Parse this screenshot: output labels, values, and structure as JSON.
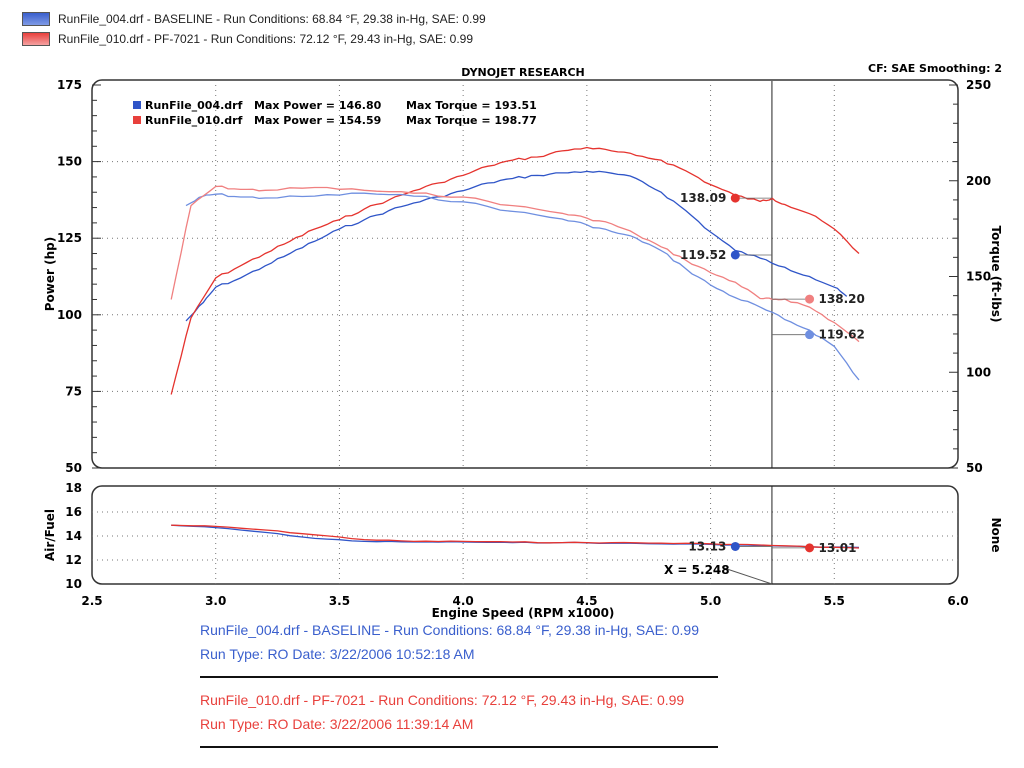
{
  "top_legend": [
    {
      "text": "RunFile_004.drf - BASELINE  -  Run Conditions: 68.84 °F, 29.38 in-Hg, SAE: 0.99",
      "color": "#3a5fcd"
    },
    {
      "text": "RunFile_010.drf - PF-7021  -  Run Conditions: 72.12 °F, 29.43 in-Hg, SAE: 0.99",
      "color": "#e8403c"
    }
  ],
  "header": {
    "title": "DYNOJET RESEARCH",
    "cf_label": "CF: SAE  Smoothing: 2"
  },
  "inner_legend": [
    {
      "name": "RunFile_004.drf",
      "power": "Max Power = 146.80",
      "torque": "Max Torque = 193.51",
      "color": "#2f55c8"
    },
    {
      "name": "RunFile_010.drf",
      "power": "Max Power = 154.59",
      "torque": "Max Torque = 198.77",
      "color": "#e8403c"
    }
  ],
  "colors": {
    "baseline": "#2f55c8",
    "baseline_light": "#6f8fe0",
    "pf": "#e5332e",
    "pf_light": "#f08080"
  },
  "chart_data": [
    {
      "type": "line",
      "title": "DYNOJET RESEARCH",
      "xlabel": "Engine Speed (RPM x1000)",
      "ylabel": "Power (hp)",
      "y2label": "Torque (ft-lbs)",
      "xlim": [
        2.5,
        6.0
      ],
      "ylim": [
        50,
        175
      ],
      "y2lim": [
        50,
        250
      ],
      "x_ticks": [
        "2.5",
        "3.0",
        "3.5",
        "4.0",
        "4.5",
        "5.0",
        "5.5",
        "6.0"
      ],
      "y_ticks": [
        "175",
        "150",
        "125",
        "100",
        "75",
        "50"
      ],
      "y2_ticks": [
        "250",
        "200",
        "150",
        "100",
        "50"
      ],
      "grid": true,
      "cursor_x": 5.248,
      "series": [
        {
          "name": "RunFile_004.drf Power",
          "color_key": "baseline",
          "axis": "left",
          "x": [
            2.88,
            2.95,
            3.0,
            3.1,
            3.2,
            3.3,
            3.4,
            3.5,
            3.6,
            3.7,
            3.8,
            3.9,
            4.0,
            4.1,
            4.2,
            4.3,
            4.4,
            4.5,
            4.6,
            4.7,
            4.8,
            4.9,
            5.0,
            5.1,
            5.2,
            5.3,
            5.4,
            5.5,
            5.55
          ],
          "y": [
            98,
            104,
            109,
            112,
            116,
            120,
            124,
            128,
            131,
            134,
            136.5,
            138.5,
            140.5,
            143,
            144.5,
            145.5,
            146.3,
            146.8,
            146.2,
            144.5,
            140,
            134,
            127,
            121,
            118.5,
            115.5,
            112.5,
            109,
            106
          ]
        },
        {
          "name": "RunFile_010.drf Power",
          "color_key": "pf",
          "axis": "left",
          "x": [
            2.82,
            2.9,
            3.0,
            3.1,
            3.2,
            3.3,
            3.4,
            3.5,
            3.6,
            3.7,
            3.8,
            3.9,
            4.0,
            4.1,
            4.2,
            4.3,
            4.4,
            4.5,
            4.6,
            4.7,
            4.8,
            4.9,
            5.0,
            5.1,
            5.2,
            5.25,
            5.3,
            5.4,
            5.5,
            5.6
          ],
          "y": [
            74,
            99,
            112,
            116,
            120,
            124,
            128,
            131,
            134.5,
            137.5,
            140.5,
            143,
            145.5,
            148.5,
            150.5,
            151.5,
            153.5,
            154.59,
            153.5,
            152,
            150.5,
            147,
            142.5,
            139,
            137,
            138,
            136,
            133,
            128,
            120
          ]
        },
        {
          "name": "RunFile_004.drf Torque",
          "color_key": "baseline_light",
          "axis": "right",
          "x": [
            2.88,
            2.95,
            3.0,
            3.1,
            3.2,
            3.4,
            3.6,
            3.8,
            4.0,
            4.2,
            4.4,
            4.5,
            4.6,
            4.7,
            4.8,
            4.9,
            5.0,
            5.1,
            5.2,
            5.3,
            5.4,
            5.5,
            5.6
          ],
          "y": [
            187,
            192,
            193,
            191.5,
            191,
            192,
            193.5,
            192,
            189,
            184,
            180,
            177,
            173.5,
            170,
            163.5,
            154,
            145.5,
            139,
            134,
            127.5,
            122,
            113.5,
            96
          ]
        },
        {
          "name": "RunFile_010.drf Torque",
          "color_key": "pf_light",
          "axis": "right",
          "x": [
            2.82,
            2.9,
            3.0,
            3.1,
            3.2,
            3.4,
            3.6,
            3.8,
            4.0,
            4.2,
            4.4,
            4.5,
            4.6,
            4.7,
            4.8,
            4.9,
            5.0,
            5.1,
            5.2,
            5.25,
            5.3,
            5.4,
            5.5,
            5.6
          ],
          "y": [
            138,
            187,
            197,
            195.5,
            195,
            196.5,
            195,
            193.5,
            191.5,
            187,
            183,
            180.5,
            177.5,
            172,
            165.5,
            158.5,
            152,
            147,
            138.5,
            138,
            138.2,
            134,
            126,
            116
          ]
        }
      ],
      "markers": [
        {
          "label": "138.09",
          "x": 5.1,
          "y": 138.09,
          "axis": "left",
          "color_key": "pf"
        },
        {
          "label": "119.52",
          "x": 5.1,
          "y": 119.52,
          "axis": "left",
          "color_key": "baseline"
        },
        {
          "label": "138.20",
          "x": 5.4,
          "y": 138.2,
          "axis": "right",
          "color_key": "pf_light"
        },
        {
          "label": "119.62",
          "x": 5.4,
          "y": 119.62,
          "axis": "right",
          "color_key": "baseline_light"
        }
      ]
    },
    {
      "type": "line",
      "xlabel": "Engine Speed (RPM x1000)",
      "ylabel": "Air/Fuel",
      "y2label": "None",
      "xlim": [
        2.5,
        6.0
      ],
      "ylim": [
        10,
        18
      ],
      "y_ticks": [
        "18",
        "16",
        "14",
        "12",
        "10"
      ],
      "grid": true,
      "cursor_label": "X = 5.248",
      "cursor_x": 5.248,
      "series": [
        {
          "name": "RunFile_004.drf Air/Fuel",
          "color_key": "baseline",
          "x": [
            2.82,
            3.0,
            3.2,
            3.4,
            3.6,
            3.8,
            4.0,
            4.2,
            4.4,
            4.6,
            4.8,
            5.0,
            5.2,
            5.4,
            5.6
          ],
          "y": [
            14.9,
            14.7,
            14.3,
            13.8,
            13.55,
            13.5,
            13.5,
            13.45,
            13.45,
            13.4,
            13.35,
            13.3,
            13.2,
            13.1,
            13.05
          ]
        },
        {
          "name": "RunFile_010.drf Air/Fuel",
          "color_key": "pf",
          "x": [
            2.82,
            3.0,
            3.2,
            3.4,
            3.6,
            3.8,
            4.0,
            4.2,
            4.4,
            4.6,
            4.8,
            5.0,
            5.2,
            5.4,
            5.6
          ],
          "y": [
            14.9,
            14.8,
            14.5,
            14.1,
            13.7,
            13.55,
            13.55,
            13.5,
            13.45,
            13.45,
            13.4,
            13.35,
            13.25,
            13.1,
            13.0
          ]
        }
      ],
      "markers": [
        {
          "label": "13.13",
          "x": 5.1,
          "y": 13.13,
          "color_key": "baseline"
        },
        {
          "label": "13.01",
          "x": 5.4,
          "y": 13.01,
          "color_key": "pf"
        }
      ]
    }
  ],
  "footer": [
    {
      "line1": "RunFile_004.drf - BASELINE  -  Run Conditions: 68.84 °F, 29.38 in-Hg, SAE: 0.99",
      "line2": "Run Type: RO  Date: 3/22/2006 10:52:18 AM",
      "color": "#3a5fcd"
    },
    {
      "line1": "RunFile_010.drf - PF-7021  -  Run Conditions: 72.12 °F, 29.43 in-Hg, SAE: 0.99",
      "line2": "Run Type: RO  Date: 3/22/2006 11:39:14 AM",
      "color": "#e8403c"
    }
  ]
}
